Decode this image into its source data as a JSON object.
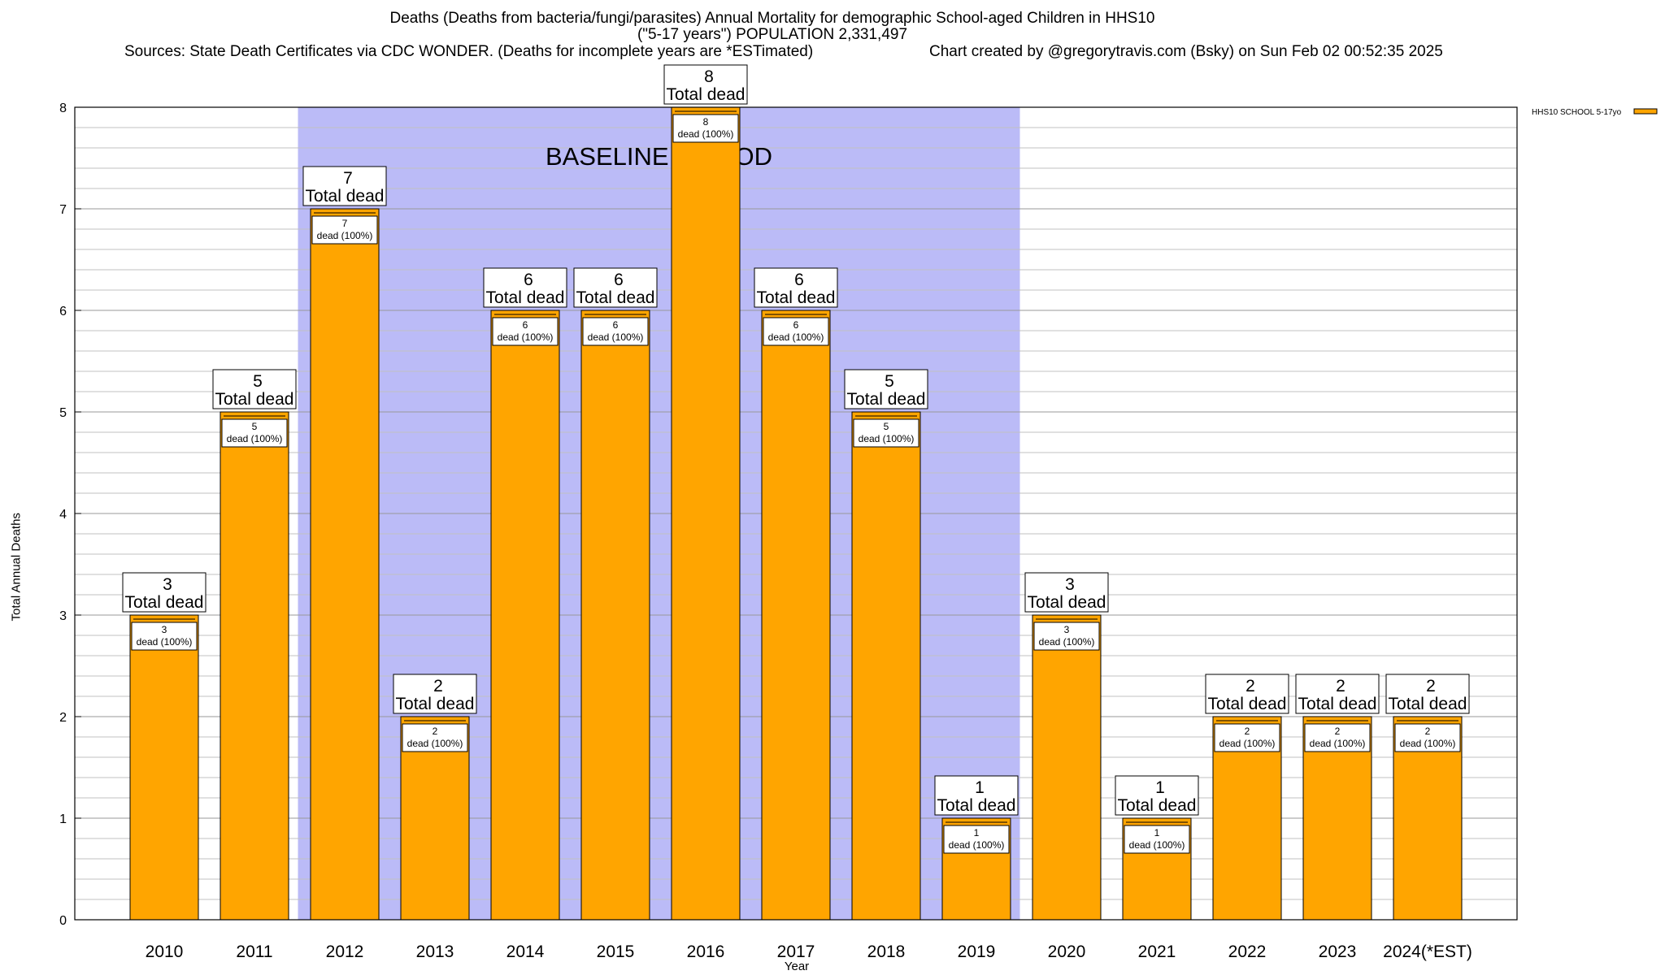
{
  "title": {
    "line1": "Deaths (Deaths from bacteria/fungi/parasites) Annual Mortality for demographic School-aged Children in HHS10",
    "line2": "(\"5-17 years\") POPULATION 2,331,497",
    "sources": "Sources: State Death Certificates via CDC WONDER. (Deaths for incomplete years are *ESTimated)",
    "credit": "Chart created by @gregorytravis.com (Bsky) on Sun Feb 02 00:52:35 2025"
  },
  "colors": {
    "bar": "#ffa500",
    "baseline": "#bbbbf7",
    "grid": "#c0c0c0"
  },
  "chart_data": {
    "type": "bar",
    "title": "Deaths (Deaths from bacteria/fungi/parasites) Annual Mortality for demographic School-aged Children in HHS10",
    "xlabel": "Year",
    "ylabel": "Total Annual Deaths",
    "ylim": [
      0,
      8
    ],
    "yticks": [
      "0",
      "1",
      "2",
      "3",
      "4",
      "5",
      "6",
      "7",
      "8"
    ],
    "grid": true,
    "legend_position": "top-right",
    "categories": [
      "2010",
      "2011",
      "2012",
      "2013",
      "2014",
      "2015",
      "2016",
      "2017",
      "2018",
      "2019",
      "2020",
      "2021",
      "2022",
      "2023",
      "2024(*EST)"
    ],
    "series": [
      {
        "name": "HHS10 SCHOOL 5-17yo",
        "values": [
          3,
          5,
          7,
          2,
          6,
          6,
          8,
          6,
          5,
          1,
          3,
          1,
          2,
          2,
          2
        ]
      }
    ],
    "total_label": "Total dead",
    "segment_label": "dead (100%)",
    "baseline": {
      "label": "BASELINE PERIOD",
      "from": "2012",
      "to": "2019"
    }
  }
}
